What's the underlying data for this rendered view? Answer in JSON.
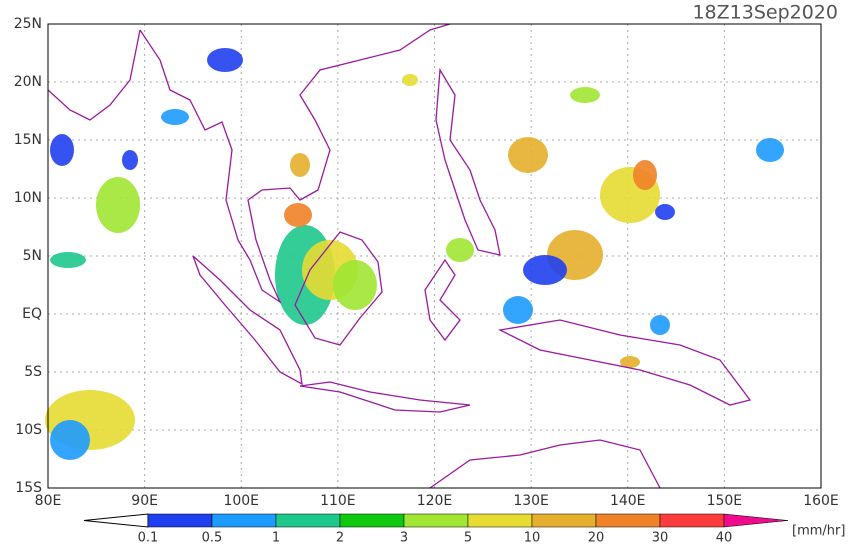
{
  "title": "18Z13Sep2020",
  "map": {
    "lat_labels": [
      "25N",
      "20N",
      "15N",
      "10N",
      "5N",
      "EQ",
      "5S",
      "10S",
      "15S"
    ],
    "lon_labels": [
      "80E",
      "90E",
      "100E",
      "110E",
      "120E",
      "130E",
      "140E",
      "150E",
      "160E"
    ]
  },
  "colorbar": {
    "labels": [
      "0.1",
      "0.5",
      "1",
      "2",
      "3",
      "5",
      "10",
      "20",
      "30",
      "40"
    ],
    "colors": [
      "#2040f0",
      "#1e9bff",
      "#1ec88c",
      "#10c810",
      "#a0e632",
      "#e6dc32",
      "#e6af2d",
      "#f08228",
      "#fa3c3c",
      "#f00a8c"
    ],
    "unit": "[mm/hr]"
  }
}
